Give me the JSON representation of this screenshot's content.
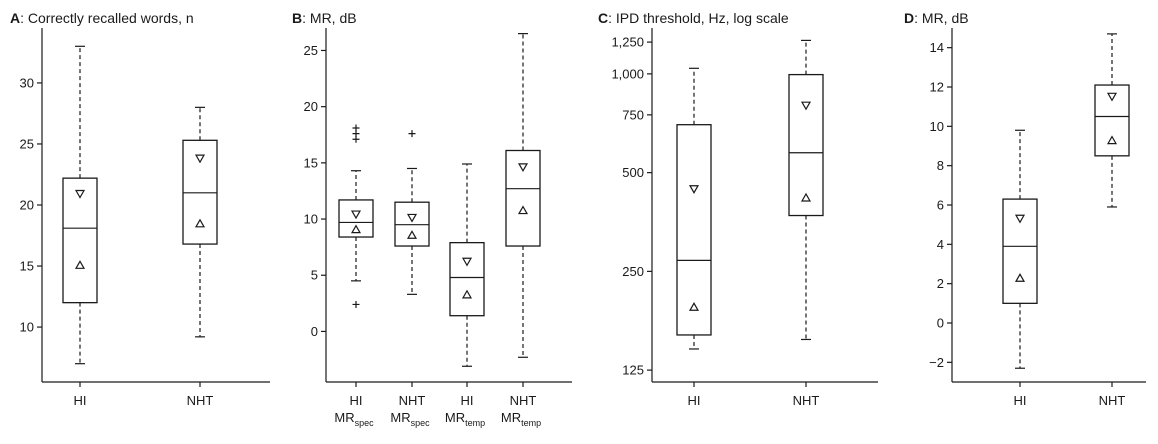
{
  "panels": [
    {
      "letter": "A",
      "title": ": Correctly recalled words, n",
      "scale": "linear",
      "ylim": [
        5.5,
        34.5
      ],
      "ticks": [
        {
          "v": 10,
          "label": "10"
        },
        {
          "v": 15,
          "label": "15"
        },
        {
          "v": 20,
          "label": "20"
        },
        {
          "v": 25,
          "label": "25"
        },
        {
          "v": 30,
          "label": "30"
        }
      ],
      "categories": [
        {
          "label": "HI"
        },
        {
          "label": "NHT"
        }
      ],
      "boxes": [
        {
          "whisker_low": 7,
          "q1": 12,
          "median": 18.1,
          "q3": 22.2,
          "whisker_high": 33,
          "mean_down": 20.9,
          "mean_up": 15.1,
          "outliers": []
        },
        {
          "whisker_low": 9.2,
          "q1": 16.8,
          "median": 21,
          "q3": 25.3,
          "whisker_high": 28,
          "mean_down": 23.8,
          "mean_up": 18.5,
          "outliers": []
        }
      ]
    },
    {
      "letter": "B",
      "title": ": MR, dB",
      "scale": "linear",
      "ylim": [
        -4.5,
        27
      ],
      "ticks": [
        {
          "v": 0,
          "label": "0"
        },
        {
          "v": 5,
          "label": "5"
        },
        {
          "v": 10,
          "label": "10"
        },
        {
          "v": 15,
          "label": "15"
        },
        {
          "v": 20,
          "label": "20"
        },
        {
          "v": 25,
          "label": "25"
        }
      ],
      "categories": [
        {
          "label": "HI",
          "sub_main": "MR",
          "sub_script": "spec"
        },
        {
          "label": "NHT",
          "sub_main": "MR",
          "sub_script": "spec"
        },
        {
          "label": "HI",
          "sub_main": "MR",
          "sub_script": "temp"
        },
        {
          "label": "NHT",
          "sub_main": "MR",
          "sub_script": "temp"
        }
      ],
      "boxes": [
        {
          "whisker_low": 4.5,
          "q1": 8.4,
          "median": 9.7,
          "q3": 11.7,
          "whisker_high": 14.3,
          "mean_down": 10.4,
          "mean_up": 9.1,
          "outliers": [
            2.4,
            17.1,
            17.6,
            18.1
          ]
        },
        {
          "whisker_low": 3.3,
          "q1": 7.6,
          "median": 9.5,
          "q3": 11.5,
          "whisker_high": 14.5,
          "mean_down": 10.1,
          "mean_up": 8.6,
          "outliers": [
            17.6
          ]
        },
        {
          "whisker_low": -3.1,
          "q1": 1.4,
          "median": 4.8,
          "q3": 7.9,
          "whisker_high": 14.9,
          "mean_down": 6.2,
          "mean_up": 3.3,
          "outliers": []
        },
        {
          "whisker_low": -2.3,
          "q1": 7.6,
          "median": 12.7,
          "q3": 16.1,
          "whisker_high": 26.5,
          "mean_down": 14.6,
          "mean_up": 10.8,
          "outliers": []
        }
      ]
    },
    {
      "letter": "C",
      "title": ": IPD threshold, Hz, log scale",
      "scale": "log",
      "ylim": [
        115,
        1380
      ],
      "ticks": [
        {
          "v": 125,
          "label": "125"
        },
        {
          "v": 250,
          "label": "250"
        },
        {
          "v": 500,
          "label": "500"
        },
        {
          "v": 750,
          "label": "750"
        },
        {
          "v": 1000,
          "label": "1,000"
        },
        {
          "v": 1250,
          "label": "1,250"
        }
      ],
      "categories": [
        {
          "label": "HI"
        },
        {
          "label": "NHT"
        }
      ],
      "boxes": [
        {
          "whisker_low": 145,
          "q1": 160,
          "median": 270,
          "q3": 700,
          "whisker_high": 1040,
          "mean_down": 445,
          "mean_up": 195,
          "outliers": []
        },
        {
          "whisker_low": 155,
          "q1": 370,
          "median": 575,
          "q3": 995,
          "whisker_high": 1265,
          "mean_down": 800,
          "mean_up": 420,
          "outliers": []
        }
      ]
    },
    {
      "letter": "D",
      "title": ": MR, dB",
      "scale": "linear",
      "ylim": [
        -3,
        15
      ],
      "ticks": [
        {
          "v": -2,
          "label": "−2"
        },
        {
          "v": 0,
          "label": "0"
        },
        {
          "v": 2,
          "label": "2"
        },
        {
          "v": 4,
          "label": "4"
        },
        {
          "v": 6,
          "label": "6"
        },
        {
          "v": 8,
          "label": "8"
        },
        {
          "v": 10,
          "label": "10"
        },
        {
          "v": 12,
          "label": "12"
        },
        {
          "v": 14,
          "label": "14"
        }
      ],
      "categories": [
        {
          "label": "HI"
        },
        {
          "label": "NHT"
        }
      ],
      "boxes": [
        {
          "whisker_low": -2.3,
          "q1": 1,
          "median": 3.9,
          "q3": 6.3,
          "whisker_high": 9.8,
          "mean_down": 5.3,
          "mean_up": 2.3,
          "outliers": []
        },
        {
          "whisker_low": 5.9,
          "q1": 8.5,
          "median": 10.5,
          "q3": 12.1,
          "whisker_high": 14.7,
          "mean_down": 11.5,
          "mean_up": 9.3,
          "outliers": []
        }
      ]
    }
  ],
  "chart_data": [
    {
      "type": "box",
      "panel": "A",
      "title": "Correctly recalled words, n",
      "categories": [
        "HI",
        "NHT"
      ],
      "series": [
        {
          "category": "HI",
          "whisker_low": 7,
          "q1": 12,
          "median": 18.1,
          "q3": 22.2,
          "whisker_high": 33,
          "mean_down_triangle": 20.9,
          "mean_up_triangle": 15.1
        },
        {
          "category": "NHT",
          "whisker_low": 9.2,
          "q1": 16.8,
          "median": 21,
          "q3": 25.3,
          "whisker_high": 28,
          "mean_down_triangle": 23.8,
          "mean_up_triangle": 18.5
        }
      ],
      "ylim": [
        5.5,
        34.5
      ],
      "grid": false
    },
    {
      "type": "box",
      "panel": "B",
      "title": "MR, dB",
      "categories": [
        "HI MRspec",
        "NHT MRspec",
        "HI MRtemp",
        "NHT MRtemp"
      ],
      "series": [
        {
          "category": "HI MRspec",
          "whisker_low": 4.5,
          "q1": 8.4,
          "median": 9.7,
          "q3": 11.7,
          "whisker_high": 14.3,
          "outliers": [
            2.4,
            17.1,
            17.6,
            18.1
          ]
        },
        {
          "category": "NHT MRspec",
          "whisker_low": 3.3,
          "q1": 7.6,
          "median": 9.5,
          "q3": 11.5,
          "whisker_high": 14.5,
          "outliers": [
            17.6
          ]
        },
        {
          "category": "HI MRtemp",
          "whisker_low": -3.1,
          "q1": 1.4,
          "median": 4.8,
          "q3": 7.9,
          "whisker_high": 14.9
        },
        {
          "category": "NHT MRtemp",
          "whisker_low": -2.3,
          "q1": 7.6,
          "median": 12.7,
          "q3": 16.1,
          "whisker_high": 26.5
        }
      ],
      "ylim": [
        -4.5,
        27
      ],
      "grid": false
    },
    {
      "type": "box",
      "panel": "C",
      "title": "IPD threshold, Hz, log scale",
      "yscale": "log",
      "categories": [
        "HI",
        "NHT"
      ],
      "series": [
        {
          "category": "HI",
          "whisker_low": 145,
          "q1": 160,
          "median": 270,
          "q3": 700,
          "whisker_high": 1040
        },
        {
          "category": "NHT",
          "whisker_low": 155,
          "q1": 370,
          "median": 575,
          "q3": 995,
          "whisker_high": 1265
        }
      ],
      "ylim": [
        115,
        1380
      ],
      "grid": false
    },
    {
      "type": "box",
      "panel": "D",
      "title": "MR, dB",
      "categories": [
        "HI",
        "NHT"
      ],
      "series": [
        {
          "category": "HI",
          "whisker_low": -2.3,
          "q1": 1,
          "median": 3.9,
          "q3": 6.3,
          "whisker_high": 9.8
        },
        {
          "category": "NHT",
          "whisker_low": 5.9,
          "q1": 8.5,
          "median": 10.5,
          "q3": 12.1,
          "whisker_high": 14.7
        }
      ],
      "ylim": [
        -3,
        15
      ],
      "grid": false
    }
  ]
}
